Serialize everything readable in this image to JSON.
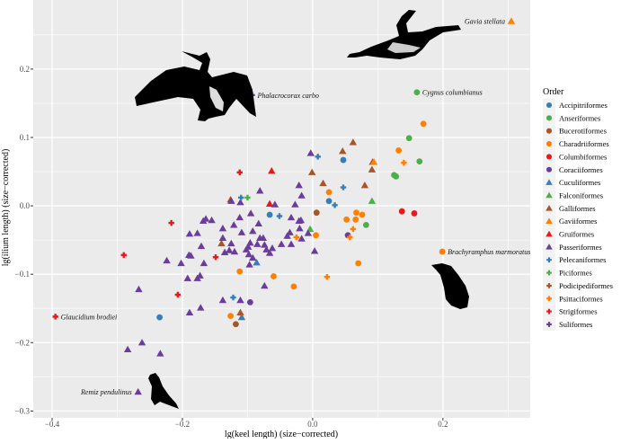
{
  "chart_data": {
    "type": "scatter",
    "xlabel": "lg(keel length) (size−corrected)",
    "ylabel": "lg(ilium length) (size−corrected)",
    "xlim": [
      -0.429,
      0.334
    ],
    "ylim": [
      -0.31,
      0.301
    ],
    "x_ticks": [
      -0.4,
      -0.2,
      0.0,
      0.2
    ],
    "x_tick_labels": [
      "−0.4",
      "−0.2",
      "0.0",
      "0.2"
    ],
    "y_ticks": [
      -0.3,
      -0.2,
      -0.1,
      0.0,
      0.1,
      0.2
    ],
    "y_tick_labels": [
      "−0.3",
      "−0.2",
      "−0.1",
      "0.0",
      "0.1",
      "0.2"
    ],
    "grid": true,
    "legend": {
      "title": "Order",
      "placement": "right"
    },
    "series": [
      {
        "name": "Accipitriformes",
        "color": "#377EB8",
        "shape": "circle",
        "points": [
          [
            0.047,
            0.067
          ],
          [
            0.025,
            0.007
          ],
          [
            -0.066,
            -0.013
          ],
          [
            -0.235,
            -0.163
          ]
        ]
      },
      {
        "name": "Anseriformes",
        "color": "#4DAF4A",
        "shape": "circle",
        "points": [
          [
            0.148,
            0.099
          ],
          [
            0.164,
            0.065
          ],
          [
            0.125,
            0.045
          ],
          [
            0.128,
            0.043
          ],
          [
            0.082,
            -0.028
          ],
          [
            0.16,
            0.166
          ]
        ]
      },
      {
        "name": "Bucerotiformes",
        "color": "#A65628",
        "shape": "circle",
        "points": [
          [
            0.006,
            -0.01
          ],
          [
            -0.118,
            -0.173
          ]
        ]
      },
      {
        "name": "Charadriiformes",
        "color": "#FF7F00",
        "shape": "circle",
        "points": [
          [
            0.17,
            0.12
          ],
          [
            0.132,
            0.081
          ],
          [
            0.025,
            0.02
          ],
          [
            0.067,
            -0.01
          ],
          [
            0.076,
            -0.013
          ],
          [
            0.052,
            -0.02
          ],
          [
            0.066,
            -0.02
          ],
          [
            0.005,
            -0.043
          ],
          [
            0.07,
            -0.084
          ],
          [
            0.199,
            -0.067
          ],
          [
            -0.112,
            -0.096
          ],
          [
            -0.06,
            -0.103
          ],
          [
            -0.029,
            -0.118
          ],
          [
            -0.126,
            -0.161
          ]
        ]
      },
      {
        "name": "Columbiformes",
        "color": "#E41A1C",
        "shape": "circle",
        "points": [
          [
            0.137,
            -0.008
          ],
          [
            0.156,
            -0.011
          ]
        ]
      },
      {
        "name": "Coraciiformes",
        "color": "#6A3D9A",
        "shape": "circle",
        "points": [
          [
            0.054,
            -0.043
          ],
          [
            -0.096,
            -0.141
          ]
        ]
      },
      {
        "name": "Cuculiformes",
        "color": "#377EB8",
        "shape": "triangle",
        "points": [
          [
            -0.086,
            -0.083
          ],
          [
            -0.109,
            -0.163
          ]
        ]
      },
      {
        "name": "Falconiformes",
        "color": "#4DAF4A",
        "shape": "triangle",
        "points": [
          [
            0.091,
            0.007
          ],
          [
            -0.004,
            -0.034
          ]
        ]
      },
      {
        "name": "Galliformes",
        "color": "#A65628",
        "shape": "triangle",
        "points": [
          [
            0.062,
            0.093
          ],
          [
            0.046,
            0.08
          ],
          [
            0.092,
            0.064
          ],
          [
            0.091,
            0.053
          ],
          [
            -0.001,
            0.049
          ],
          [
            0.016,
            0.033
          ],
          [
            0.08,
            0.03
          ],
          [
            -0.126,
            0.009
          ],
          [
            -0.14,
            -0.055
          ],
          [
            -0.111,
            -0.156
          ]
        ]
      },
      {
        "name": "Gaviiformes",
        "color": "#FF7F00",
        "shape": "triangle",
        "points": [
          [
            0.094,
            0.064
          ],
          [
            0.305,
            0.27
          ]
        ]
      },
      {
        "name": "Gruiformes",
        "color": "#E41A1C",
        "shape": "triangle",
        "points": [
          [
            -0.063,
            0.051
          ],
          [
            -0.066,
            0.003
          ]
        ]
      },
      {
        "name": "Passeriformes",
        "color": "#6A3D9A",
        "shape": "triangle",
        "points": [
          [
            -0.003,
            0.077
          ],
          [
            -0.081,
            0.022
          ],
          [
            -0.021,
            0.03
          ],
          [
            -0.017,
            0.015
          ],
          [
            -0.027,
            0.002
          ],
          [
            -0.058,
            0.002
          ],
          [
            -0.111,
            0.005
          ],
          [
            -0.125,
            0.007
          ],
          [
            -0.095,
            -0.011
          ],
          [
            -0.112,
            -0.017
          ],
          [
            -0.168,
            -0.022
          ],
          [
            -0.164,
            -0.019
          ],
          [
            -0.155,
            -0.021
          ],
          [
            -0.033,
            -0.017
          ],
          [
            -0.021,
            -0.022
          ],
          [
            -0.018,
            -0.021
          ],
          [
            -0.138,
            -0.033
          ],
          [
            -0.121,
            -0.028
          ],
          [
            -0.083,
            -0.026
          ],
          [
            -0.02,
            -0.033
          ],
          [
            -0.189,
            -0.041
          ],
          [
            -0.177,
            -0.04
          ],
          [
            -0.109,
            -0.039
          ],
          [
            -0.092,
            -0.037
          ],
          [
            -0.035,
            -0.039
          ],
          [
            -0.039,
            -0.044
          ],
          [
            -0.007,
            -0.04
          ],
          [
            -0.017,
            -0.048
          ],
          [
            -0.138,
            -0.047
          ],
          [
            -0.081,
            -0.047
          ],
          [
            -0.076,
            -0.047
          ],
          [
            -0.125,
            -0.055
          ],
          [
            -0.096,
            -0.054
          ],
          [
            -0.099,
            -0.06
          ],
          [
            -0.085,
            -0.056
          ],
          [
            -0.074,
            -0.057
          ],
          [
            -0.048,
            -0.056
          ],
          [
            -0.033,
            -0.056
          ],
          [
            -0.171,
            -0.059
          ],
          [
            -0.135,
            -0.068
          ],
          [
            -0.128,
            -0.065
          ],
          [
            -0.12,
            -0.067
          ],
          [
            -0.102,
            -0.064
          ],
          [
            -0.098,
            -0.071
          ],
          [
            -0.092,
            -0.076
          ],
          [
            -0.071,
            -0.064
          ],
          [
            -0.062,
            -0.062
          ],
          [
            -0.066,
            -0.069
          ],
          [
            0.003,
            -0.066
          ],
          [
            -0.19,
            -0.072
          ],
          [
            -0.187,
            -0.073
          ],
          [
            -0.224,
            -0.08
          ],
          [
            -0.202,
            -0.084
          ],
          [
            -0.167,
            -0.084
          ],
          [
            -0.097,
            -0.086
          ],
          [
            -0.192,
            -0.106
          ],
          [
            -0.177,
            -0.106
          ],
          [
            -0.173,
            -0.102
          ],
          [
            -0.074,
            -0.117
          ],
          [
            -0.267,
            -0.122
          ],
          [
            -0.138,
            -0.138
          ],
          [
            -0.111,
            -0.138
          ],
          [
            -0.172,
            -0.149
          ],
          [
            -0.189,
            -0.156
          ],
          [
            -0.262,
            -0.2
          ],
          [
            -0.284,
            -0.21
          ],
          [
            -0.234,
            -0.216
          ],
          [
            -0.268,
            -0.272
          ]
        ]
      },
      {
        "name": "Pelecaniformes",
        "color": "#377EB8",
        "shape": "plus",
        "points": [
          [
            0.008,
            0.072
          ],
          [
            -0.11,
            0.012
          ],
          [
            -0.051,
            -0.015
          ],
          [
            -0.122,
            -0.134
          ],
          [
            0.047,
            0.027
          ],
          [
            0.034,
            0.001
          ]
        ]
      },
      {
        "name": "Piciformes",
        "color": "#4DAF4A",
        "shape": "plus",
        "points": [
          [
            -0.1,
            0.012
          ]
        ]
      },
      {
        "name": "Podicipediformes",
        "color": "#A65628",
        "shape": "plus",
        "points": []
      },
      {
        "name": "Psittaciformes",
        "color": "#FF7F00",
        "shape": "plus",
        "points": [
          [
            0.14,
            0.063
          ],
          [
            0.062,
            -0.034
          ],
          [
            0.057,
            -0.046
          ],
          [
            0.022,
            -0.104
          ],
          [
            -0.025,
            -0.046
          ]
        ]
      },
      {
        "name": "Strigiformes",
        "color": "#E41A1C",
        "shape": "plus",
        "points": [
          [
            -0.112,
            0.049
          ],
          [
            -0.217,
            -0.025
          ],
          [
            -0.149,
            -0.075
          ],
          [
            -0.207,
            -0.13
          ],
          [
            -0.395,
            -0.162
          ],
          [
            -0.29,
            -0.072
          ]
        ]
      },
      {
        "name": "Suliformes",
        "color": "#6A3D9A",
        "shape": "plus",
        "points": [
          [
            -0.093,
            0.162
          ]
        ]
      }
    ],
    "annotations": [
      {
        "text": "Gavia stellata",
        "x": 0.305,
        "y": 0.27,
        "side": "left"
      },
      {
        "text": "Cygnus columbianus",
        "x": 0.16,
        "y": 0.166,
        "side": "right"
      },
      {
        "text": "Phalacrocorax carbo",
        "x": -0.093,
        "y": 0.162,
        "side": "right"
      },
      {
        "text": "Brachyramphus marmoratus",
        "x": 0.199,
        "y": -0.067,
        "side": "right"
      },
      {
        "text": "Glaucidium brodiei",
        "x": -0.395,
        "y": -0.162,
        "side": "right"
      },
      {
        "text": "Remiz pendulinus",
        "x": -0.268,
        "y": -0.272,
        "side": "left"
      }
    ]
  }
}
